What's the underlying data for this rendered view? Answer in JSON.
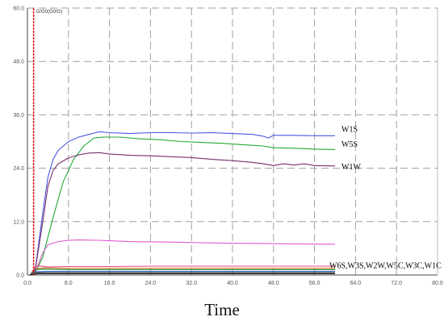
{
  "chart_data": {
    "type": "line",
    "title": "",
    "xlabel": "Time",
    "ylabel": "G/G0(G0/G)",
    "xlim": [
      0,
      80
    ],
    "ylim": [
      0,
      60
    ],
    "x_ticks": [
      "0.0",
      "8.0",
      "16.0",
      "24.0",
      "32.0",
      "40.0",
      "48.0",
      "56.0",
      "64.0",
      "72.0",
      "80.0"
    ],
    "y_ticks": [
      "0.0",
      "12.0",
      "24.0",
      "36.0",
      "48.0",
      "60.0"
    ],
    "grid": "dashed",
    "marker_line": {
      "x": 1.2,
      "color": "#e02020"
    },
    "series": [
      {
        "name": "W1S",
        "color": "#4a55e0",
        "points": [
          [
            0.5,
            0
          ],
          [
            1.5,
            1
          ],
          [
            3,
            14
          ],
          [
            4,
            22
          ],
          [
            5,
            26
          ],
          [
            6,
            28
          ],
          [
            8,
            30
          ],
          [
            10,
            31
          ],
          [
            12,
            31.6
          ],
          [
            14,
            32.2
          ],
          [
            16,
            32
          ],
          [
            20,
            31.8
          ],
          [
            24,
            32
          ],
          [
            28,
            32
          ],
          [
            32,
            31.9
          ],
          [
            36,
            32
          ],
          [
            40,
            31.8
          ],
          [
            44,
            31.6
          ],
          [
            46,
            31.2
          ],
          [
            47,
            30.8
          ],
          [
            48,
            31.4
          ],
          [
            52,
            31.4
          ],
          [
            56,
            31.3
          ],
          [
            60,
            31.3
          ]
        ]
      },
      {
        "name": "W5S",
        "color": "#22aa33",
        "points": [
          [
            0.5,
            0
          ],
          [
            1.5,
            0.5
          ],
          [
            3,
            4
          ],
          [
            5,
            13
          ],
          [
            7,
            21
          ],
          [
            9,
            26
          ],
          [
            11,
            29
          ],
          [
            13,
            30.8
          ],
          [
            15,
            31
          ],
          [
            18,
            31
          ],
          [
            22,
            30.6
          ],
          [
            26,
            30.4
          ],
          [
            30,
            30
          ],
          [
            34,
            29.8
          ],
          [
            38,
            29.6
          ],
          [
            42,
            29.3
          ],
          [
            46,
            29
          ],
          [
            48,
            28.6
          ],
          [
            52,
            28.5
          ],
          [
            56,
            28.3
          ],
          [
            60,
            28.2
          ]
        ]
      },
      {
        "name": "W1W",
        "color": "#7a2e6a",
        "points": [
          [
            0.5,
            0
          ],
          [
            1.5,
            1
          ],
          [
            3,
            12
          ],
          [
            4,
            20
          ],
          [
            5,
            23.5
          ],
          [
            6,
            25
          ],
          [
            8,
            26.3
          ],
          [
            10,
            27
          ],
          [
            12,
            27.4
          ],
          [
            14,
            27.5
          ],
          [
            16,
            27.2
          ],
          [
            20,
            26.9
          ],
          [
            24,
            26.8
          ],
          [
            28,
            26.6
          ],
          [
            32,
            26.4
          ],
          [
            36,
            26
          ],
          [
            40,
            25.7
          ],
          [
            44,
            25.3
          ],
          [
            46,
            25
          ],
          [
            48,
            24.6
          ],
          [
            50,
            25
          ],
          [
            52,
            24.7
          ],
          [
            54,
            25
          ],
          [
            56,
            24.6
          ],
          [
            60,
            24.5
          ]
        ]
      },
      {
        "name": "",
        "color": "#e05ad2",
        "points": [
          [
            0.5,
            0
          ],
          [
            1.5,
            0.5
          ],
          [
            3,
            5
          ],
          [
            4,
            6.8
          ],
          [
            6,
            7.5
          ],
          [
            8,
            7.8
          ],
          [
            10,
            7.9
          ],
          [
            14,
            7.8
          ],
          [
            20,
            7.5
          ],
          [
            28,
            7.4
          ],
          [
            36,
            7.2
          ],
          [
            44,
            7.1
          ],
          [
            52,
            7
          ],
          [
            60,
            6.9
          ]
        ]
      },
      {
        "name": "",
        "color": "#e04a8a",
        "points": [
          [
            0.5,
            0
          ],
          [
            1.5,
            1.8
          ],
          [
            2,
            2.1
          ],
          [
            4,
            1.8
          ],
          [
            8,
            1.9
          ],
          [
            16,
            1.9
          ],
          [
            24,
            2
          ],
          [
            32,
            2
          ],
          [
            40,
            2
          ],
          [
            48,
            2
          ],
          [
            60,
            2
          ]
        ]
      },
      {
        "name": "",
        "color": "#d07a20",
        "points": [
          [
            0.5,
            0
          ],
          [
            1.5,
            1.4
          ],
          [
            3,
            1.6
          ],
          [
            8,
            1.5
          ],
          [
            16,
            1.5
          ],
          [
            32,
            1.5
          ],
          [
            48,
            1.5
          ],
          [
            60,
            1.5
          ]
        ]
      },
      {
        "name": "",
        "color": "#1a8a40",
        "points": [
          [
            0.5,
            0
          ],
          [
            1.5,
            1.2
          ],
          [
            3,
            1.3
          ],
          [
            8,
            1.2
          ],
          [
            16,
            1.2
          ],
          [
            32,
            1.2
          ],
          [
            48,
            1.2
          ],
          [
            60,
            1.2
          ]
        ]
      },
      {
        "name": "",
        "color": "#3060c0",
        "points": [
          [
            0.5,
            0
          ],
          [
            1.5,
            0.7
          ],
          [
            4,
            0.8
          ],
          [
            16,
            0.8
          ],
          [
            32,
            0.8
          ],
          [
            48,
            0.8
          ],
          [
            60,
            0.8
          ]
        ]
      },
      {
        "name": "",
        "color": "#303030",
        "points": [
          [
            0.5,
            0
          ],
          [
            1.5,
            0.5
          ],
          [
            4,
            0.5
          ],
          [
            16,
            0.5
          ],
          [
            32,
            0.5
          ],
          [
            48,
            0.5
          ],
          [
            60,
            0.5
          ]
        ]
      },
      {
        "name": "",
        "color": "#1a1a1a",
        "points": [
          [
            0.5,
            0
          ],
          [
            2,
            0.3
          ],
          [
            8,
            0.3
          ],
          [
            16,
            0.3
          ],
          [
            32,
            0.3
          ],
          [
            48,
            0.3
          ],
          [
            60,
            0.3
          ]
        ]
      }
    ],
    "annotations": {
      "w1s": "W1S",
      "w5s": "W5S",
      "w1w": "W1W",
      "group": "W6S,W3S,W2W,W5C,W3C,W1C"
    }
  }
}
